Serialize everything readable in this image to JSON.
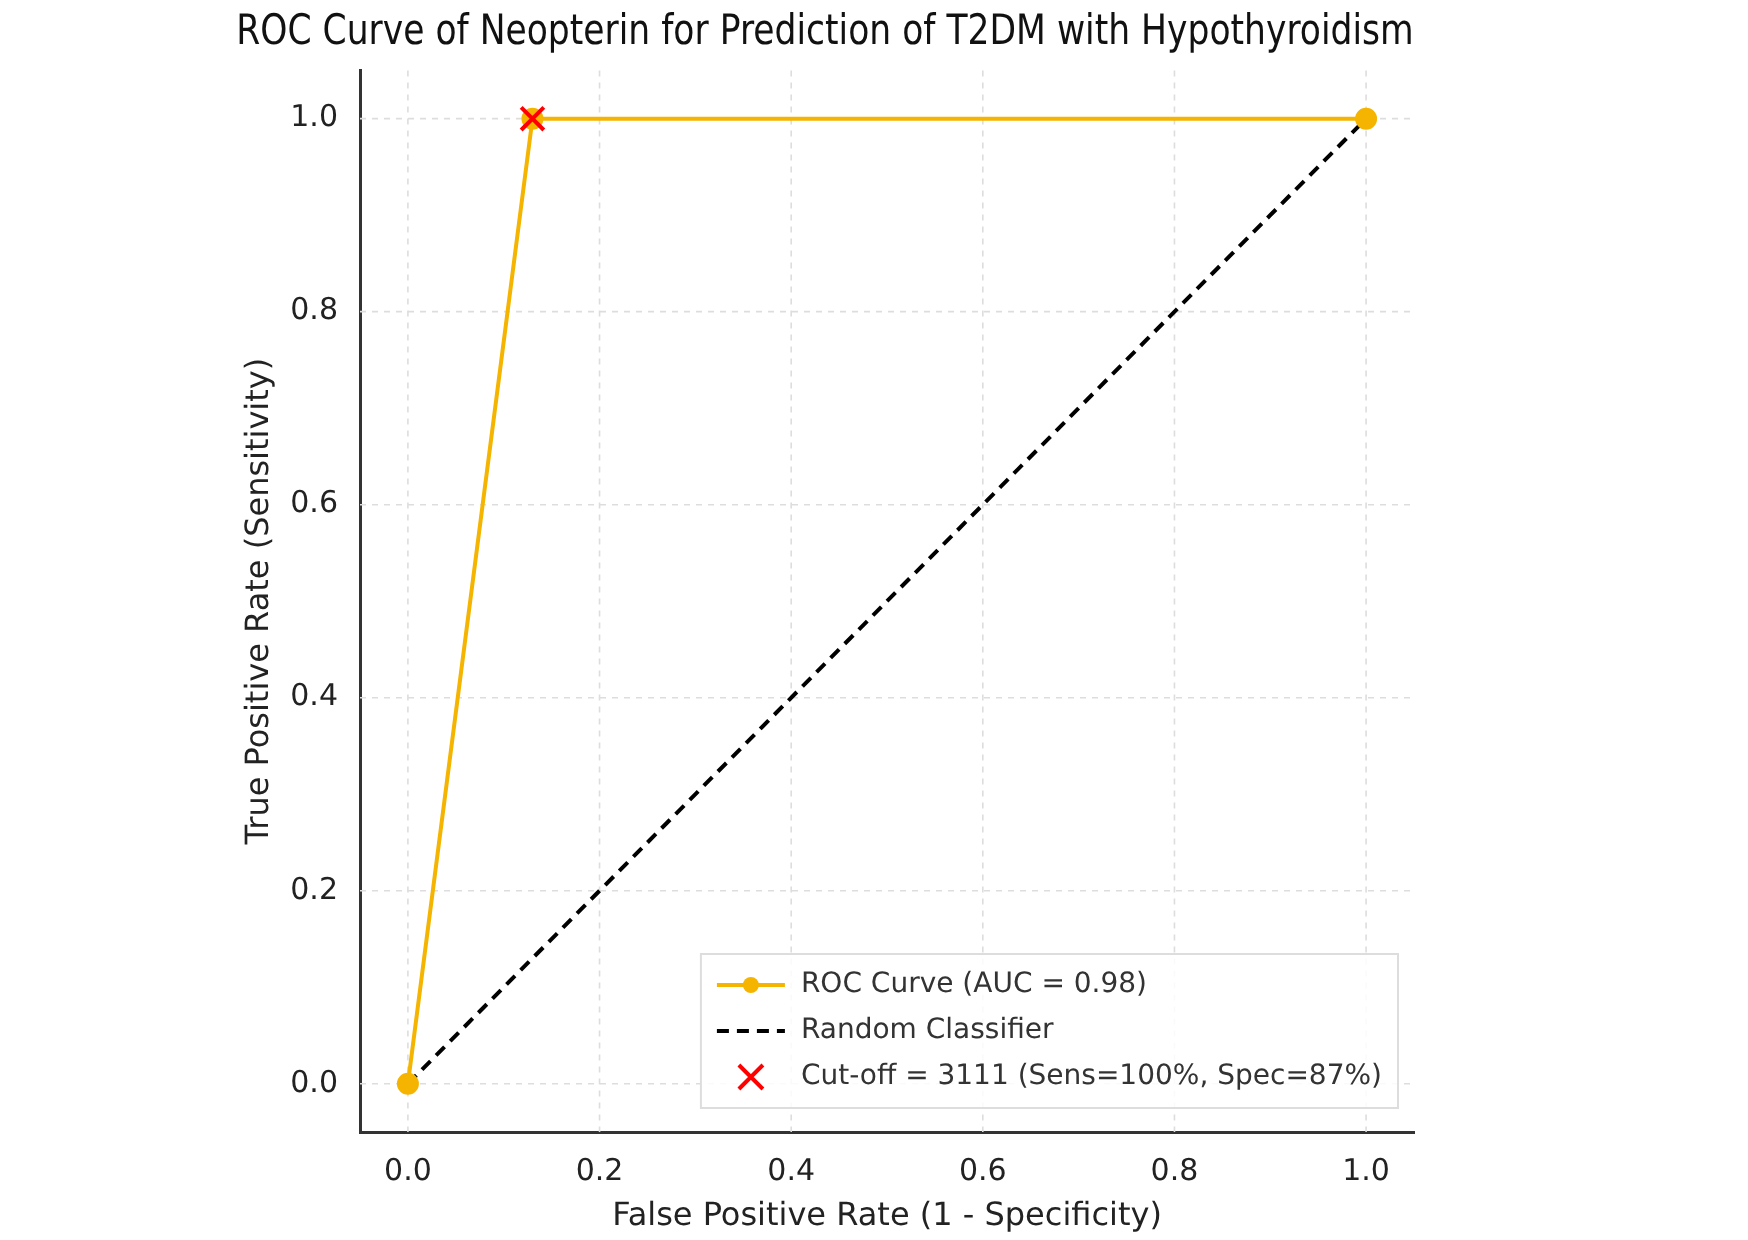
{
  "chart_data": {
    "type": "line",
    "title": "ROC Curve of Neopterin for Prediction of T2DM with Hypothyroidism",
    "xlabel": "False Positive Rate (1 - Specificity)",
    "ylabel": "True Positive Rate (Sensitivity)",
    "xlim": [
      -0.05,
      1.05
    ],
    "ylim": [
      -0.05,
      1.05
    ],
    "xticks": [
      {
        "value": 0,
        "label": "0.0"
      },
      0.2,
      0.4,
      0.6,
      0.8,
      {
        "value": 1,
        "label": "1.0"
      }
    ],
    "yticks": [
      {
        "value": 0,
        "label": "0.0"
      },
      0.2,
      0.4,
      0.6,
      0.8,
      {
        "value": 1,
        "label": "1.0"
      }
    ],
    "grid": true,
    "legend": "bottom right",
    "series": [
      {
        "name": "ROC Curve (AUC = 0.98)",
        "type": "line",
        "color": "#f5b400",
        "marker": "circle",
        "line_style": "solid",
        "x": [
          0,
          0.13,
          1
        ],
        "values": [
          0,
          1,
          1
        ]
      },
      {
        "name": "Random Classifier",
        "type": "line",
        "color": "#000000",
        "marker": "none",
        "line_style": "dashed",
        "x": [
          0,
          1
        ],
        "values": [
          0,
          1
        ]
      },
      {
        "name": "Cut-off = 3111 (Sens=100%, Spec=87%)",
        "type": "scatter",
        "color": "#ff0000",
        "marker": "cross",
        "x": [
          0.13
        ],
        "values": [
          1
        ]
      }
    ]
  }
}
